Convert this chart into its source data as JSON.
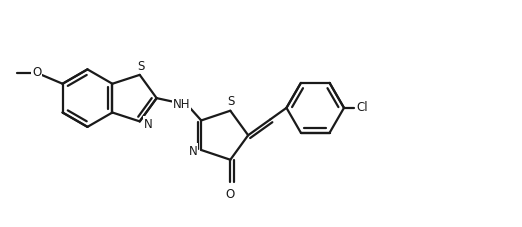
{
  "background_color": "#ffffff",
  "line_color": "#1a1a1a",
  "lw": 1.6,
  "figsize": [
    5.22,
    2.28
  ],
  "dpi": 100,
  "xlim": [
    0,
    10.5
  ],
  "ylim": [
    0,
    4.5
  ]
}
